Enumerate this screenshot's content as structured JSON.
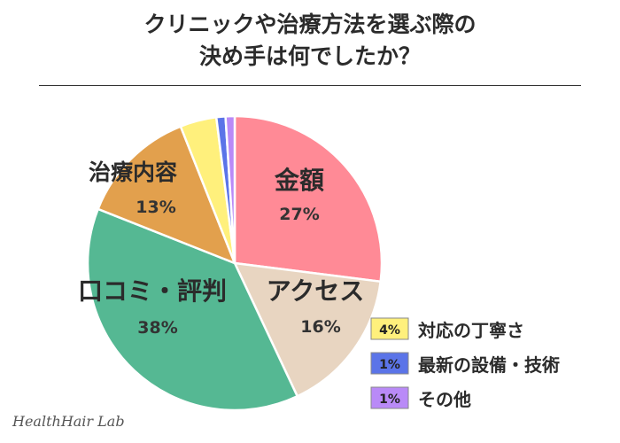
{
  "title": {
    "line1": "クリニックや治療方法を選ぶ際の",
    "line2": "決め手は何でしたか？"
  },
  "watermark": "HealthHair Lab",
  "chart_data": {
    "type": "pie",
    "start_angle_deg": 0,
    "direction": "clockwise",
    "slices": [
      {
        "label": "金額",
        "value": 27,
        "pct": "27%",
        "color": "#ff8a96"
      },
      {
        "label": "アクセス",
        "value": 16,
        "pct": "16%",
        "color": "#e8d5c1"
      },
      {
        "label": "口コミ・評判",
        "value": 38,
        "pct": "38%",
        "color": "#55b893"
      },
      {
        "label": "治療内容",
        "value": 13,
        "pct": "13%",
        "color": "#e2a04d"
      },
      {
        "label": "対応の丁寧さ",
        "value": 4,
        "pct": "4%",
        "color": "#fff07c"
      },
      {
        "label": "最新の設備・技術",
        "value": 1,
        "pct": "1%",
        "color": "#5b74e8"
      },
      {
        "label": "その他",
        "value": 1,
        "pct": "1%",
        "color": "#b98af7"
      }
    ],
    "legend_items": [
      "対応の丁寧さ",
      "最新の設備・技術",
      "その他"
    ],
    "legend_placement": "bottom-right"
  }
}
